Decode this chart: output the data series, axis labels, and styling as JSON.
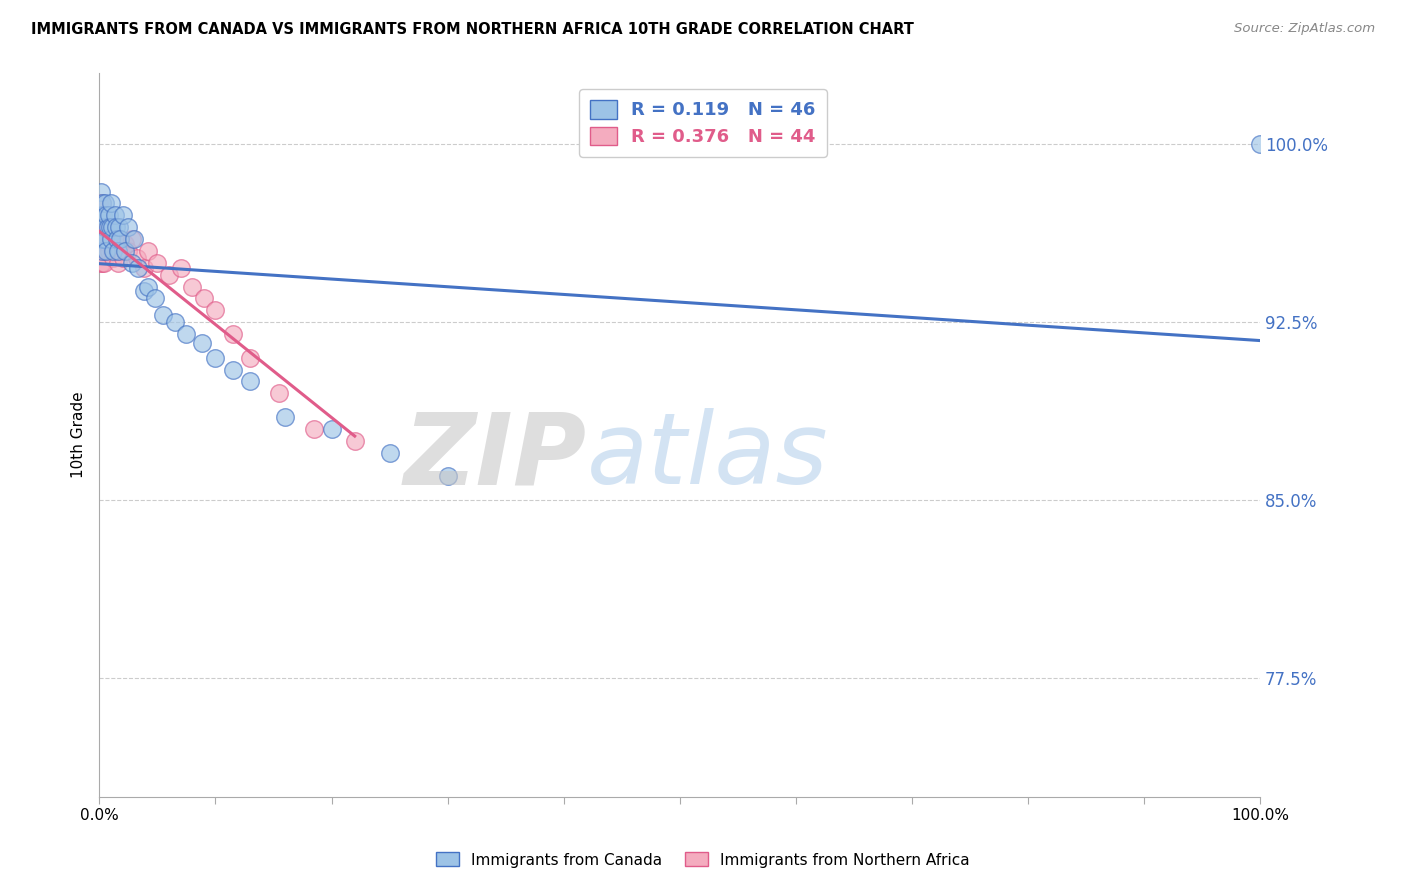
{
  "title": "IMMIGRANTS FROM CANADA VS IMMIGRANTS FROM NORTHERN AFRICA 10TH GRADE CORRELATION CHART",
  "source": "Source: ZipAtlas.com",
  "ylabel": "10th Grade",
  "yticks": [
    "77.5%",
    "85.0%",
    "92.5%",
    "100.0%"
  ],
  "ytick_vals": [
    0.775,
    0.85,
    0.925,
    1.0
  ],
  "xrange": [
    0.0,
    1.0
  ],
  "yrange": [
    0.725,
    1.03
  ],
  "legend1_color_text": "#4472c4",
  "legend2_color_text": "#e05c8a",
  "watermark_zip": "ZIP",
  "watermark_atlas": "atlas",
  "canada_color": "#9dc3e6",
  "canada_edge": "#4472c4",
  "nafr_color": "#f4acbf",
  "nafr_edge": "#e05c8a",
  "canada_R": 0.119,
  "canada_N": 46,
  "nafr_R": 0.376,
  "nafr_N": 44,
  "canada_x": [
    0.0,
    0.001,
    0.001,
    0.002,
    0.002,
    0.003,
    0.003,
    0.004,
    0.005,
    0.005,
    0.006,
    0.006,
    0.007,
    0.008,
    0.009,
    0.01,
    0.01,
    0.011,
    0.012,
    0.013,
    0.014,
    0.015,
    0.016,
    0.017,
    0.018,
    0.02,
    0.022,
    0.025,
    0.028,
    0.03,
    0.033,
    0.038,
    0.042,
    0.048,
    0.055,
    0.065,
    0.075,
    0.088,
    0.1,
    0.115,
    0.13,
    0.16,
    0.2,
    0.25,
    0.3,
    1.0
  ],
  "canada_y": [
    0.97,
    0.98,
    0.96,
    0.975,
    0.955,
    0.97,
    0.96,
    0.965,
    0.975,
    0.96,
    0.97,
    0.955,
    0.965,
    0.97,
    0.965,
    0.975,
    0.96,
    0.965,
    0.955,
    0.97,
    0.965,
    0.96,
    0.955,
    0.965,
    0.96,
    0.97,
    0.955,
    0.965,
    0.95,
    0.96,
    0.948,
    0.938,
    0.94,
    0.935,
    0.928,
    0.925,
    0.92,
    0.916,
    0.91,
    0.905,
    0.9,
    0.885,
    0.88,
    0.87,
    0.86,
    1.0
  ],
  "nafr_x": [
    0.0,
    0.0,
    0.001,
    0.001,
    0.001,
    0.002,
    0.002,
    0.002,
    0.003,
    0.003,
    0.004,
    0.004,
    0.005,
    0.005,
    0.006,
    0.007,
    0.008,
    0.009,
    0.01,
    0.011,
    0.012,
    0.013,
    0.014,
    0.015,
    0.016,
    0.018,
    0.02,
    0.022,
    0.025,
    0.028,
    0.032,
    0.038,
    0.042,
    0.05,
    0.06,
    0.07,
    0.08,
    0.09,
    0.1,
    0.115,
    0.13,
    0.155,
    0.185,
    0.22
  ],
  "nafr_y": [
    0.975,
    0.965,
    0.97,
    0.96,
    0.95,
    0.975,
    0.96,
    0.95,
    0.965,
    0.955,
    0.96,
    0.95,
    0.965,
    0.955,
    0.96,
    0.958,
    0.955,
    0.96,
    0.958,
    0.955,
    0.952,
    0.958,
    0.96,
    0.955,
    0.95,
    0.955,
    0.952,
    0.958,
    0.955,
    0.96,
    0.952,
    0.948,
    0.955,
    0.95,
    0.945,
    0.948,
    0.94,
    0.935,
    0.93,
    0.92,
    0.91,
    0.895,
    0.88,
    0.875
  ]
}
